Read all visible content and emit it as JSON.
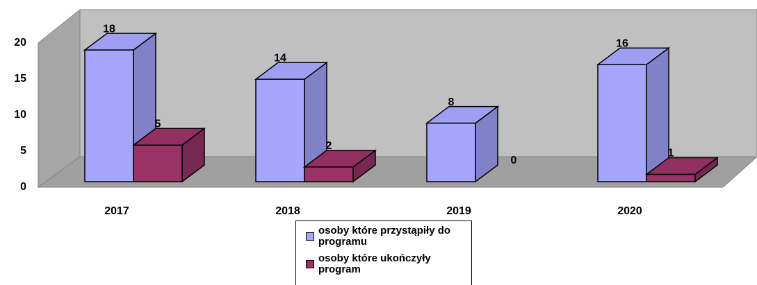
{
  "chart_data": {
    "type": "bar3d",
    "categories": [
      "2017",
      "2018",
      "2019",
      "2020"
    ],
    "series": [
      {
        "name": "osoby które przystąpiły do programu",
        "color": "#a6a6ff",
        "values": [
          18,
          14,
          8,
          16
        ]
      },
      {
        "name": "osoby które ukończyły program",
        "color": "#993366",
        "values": [
          5,
          2,
          0,
          1
        ]
      }
    ],
    "ylim": [
      0,
      20
    ],
    "yticks": [
      0,
      5,
      10,
      15,
      20
    ]
  }
}
